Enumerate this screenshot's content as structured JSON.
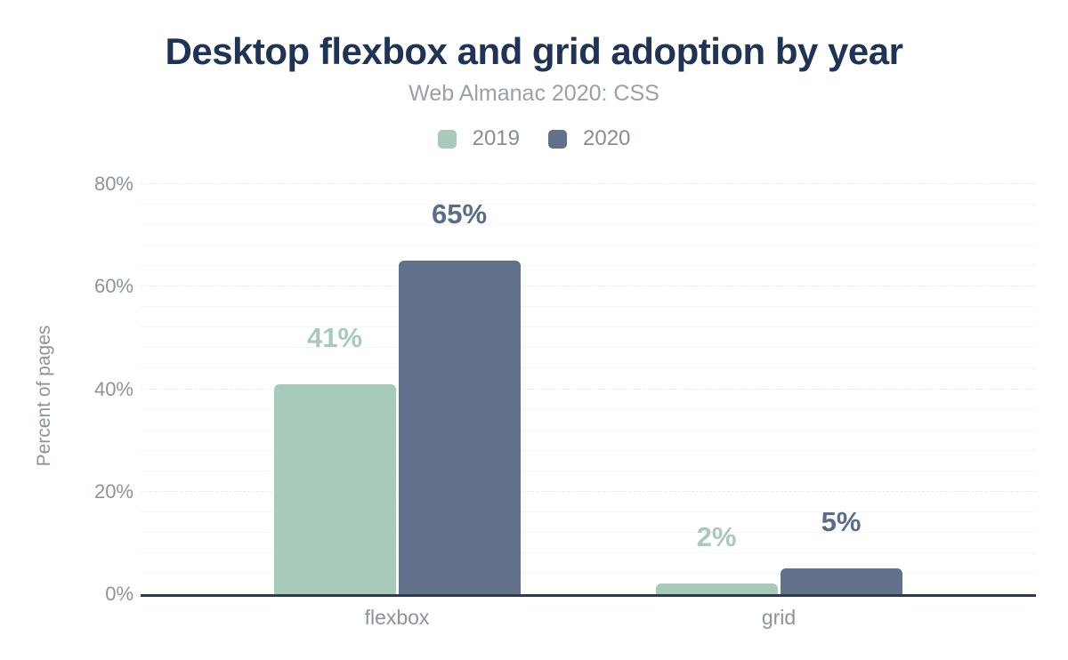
{
  "chart_data": {
    "type": "bar",
    "title": "Desktop flexbox and grid adoption by year",
    "subtitle": "Web Almanac 2020: CSS",
    "ylabel": "Percent of pages",
    "xlabel": "",
    "ylim": [
      0,
      80
    ],
    "grid": "on",
    "legend_position": "top",
    "categories": [
      "flexbox",
      "grid"
    ],
    "series": [
      {
        "name": "2019",
        "color": "#a8caba",
        "label_color": "#a8caba",
        "values": [
          41,
          2
        ],
        "value_labels": [
          "41%",
          "2%"
        ]
      },
      {
        "name": "2020",
        "color": "#61718c",
        "label_color": "#5b6c8b",
        "values": [
          65,
          5
        ],
        "value_labels": [
          "65%",
          "5%"
        ]
      }
    ],
    "yticks": [
      {
        "value": 0,
        "label": "0%"
      },
      {
        "value": 20,
        "label": "20%"
      },
      {
        "value": 40,
        "label": "40%"
      },
      {
        "value": 60,
        "label": "60%"
      },
      {
        "value": 80,
        "label": "80%"
      }
    ],
    "colors": {
      "title": "#1f3356",
      "subtitle": "#9aa0ab",
      "axis_text": "#8d939e",
      "axis_line": "#2e3a4e",
      "grid_major": "#e8eaec",
      "grid_minor": "#f4f5f7"
    }
  }
}
